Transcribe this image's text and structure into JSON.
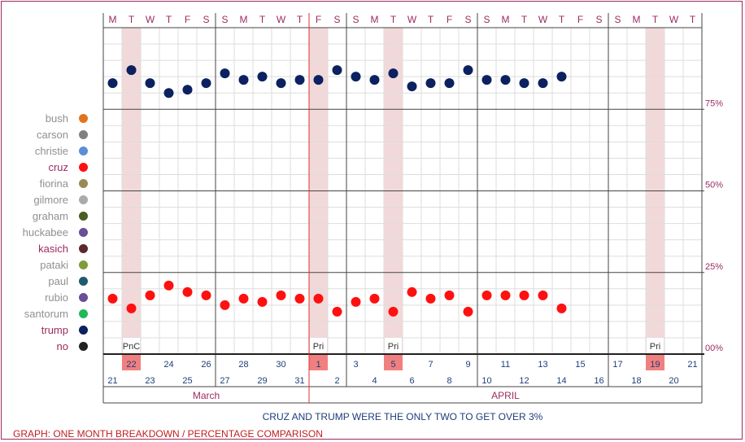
{
  "chart_data": {
    "type": "scatter",
    "day_letters": [
      "M",
      "T",
      "W",
      "T",
      "F",
      "S",
      "S",
      "M",
      "T",
      "W",
      "T",
      "F",
      "S",
      "S",
      "M",
      "T",
      "W",
      "T",
      "F",
      "S",
      "S",
      "M",
      "T",
      "W",
      "T",
      "F",
      "S",
      "S",
      "M",
      "T",
      "W",
      "T"
    ],
    "day_numbers": [
      "21",
      "22",
      "23",
      "24",
      "25",
      "26",
      "27",
      "28",
      "29",
      "30",
      "31",
      "1",
      "2",
      "3",
      "4",
      "5",
      "6",
      "7",
      "8",
      "9",
      "10",
      "11",
      "12",
      "13",
      "14",
      "15",
      "16",
      "17",
      "18",
      "19",
      "20",
      "21"
    ],
    "months": [
      "March",
      "APRIL"
    ],
    "event_markers": [
      {
        "day_index": 1,
        "label": "PnC"
      },
      {
        "day_index": 11,
        "label": "Pri"
      },
      {
        "day_index": 15,
        "label": "Pri"
      },
      {
        "day_index": 29,
        "label": "Pri"
      }
    ],
    "y_ticks": [
      "00%",
      "25%",
      "50%",
      "75%"
    ],
    "ylim": [
      0,
      100
    ],
    "series": [
      {
        "name": "trump",
        "color": "#0b2160",
        "values": [
          83,
          87,
          83,
          80,
          81,
          83,
          86,
          84,
          85,
          83,
          84,
          84,
          87,
          85,
          84,
          86,
          82,
          83,
          83,
          87,
          84,
          84,
          83,
          83,
          85,
          null,
          null,
          null,
          null,
          null,
          null,
          null
        ]
      },
      {
        "name": "cruz",
        "color": "#ff1010",
        "values": [
          17,
          14,
          18,
          21,
          19,
          18,
          15,
          17,
          16,
          18,
          17,
          17,
          13,
          16,
          17,
          13,
          19,
          17,
          18,
          13,
          18,
          18,
          18,
          18,
          14,
          null,
          null,
          null,
          null,
          null,
          null,
          null
        ]
      }
    ],
    "legend": [
      {
        "name": "bush",
        "color": "#e2751c",
        "highlight": false
      },
      {
        "name": "carson",
        "color": "#808080",
        "highlight": false
      },
      {
        "name": "christie",
        "color": "#5b8ed6",
        "highlight": false
      },
      {
        "name": "cruz",
        "color": "#ff1010",
        "highlight": true
      },
      {
        "name": "fiorina",
        "color": "#998a55",
        "highlight": false
      },
      {
        "name": "gilmore",
        "color": "#aaaaaa",
        "highlight": false
      },
      {
        "name": "graham",
        "color": "#4a5e22",
        "highlight": false
      },
      {
        "name": "huckabee",
        "color": "#6b4e94",
        "highlight": false
      },
      {
        "name": "kasich",
        "color": "#5c2a2a",
        "highlight": true
      },
      {
        "name": "pataki",
        "color": "#7f9c3a",
        "highlight": false
      },
      {
        "name": "paul",
        "color": "#1f5b6e",
        "highlight": false
      },
      {
        "name": "rubio",
        "color": "#6b4e94",
        "highlight": false
      },
      {
        "name": "santorum",
        "color": "#21b85a",
        "highlight": false
      },
      {
        "name": "trump",
        "color": "#0b2160",
        "highlight": true
      },
      {
        "name": "no",
        "color": "#222222",
        "highlight": true
      }
    ],
    "annotation": "CRUZ AND TRUMP WERE THE ONLY TWO TO GET OVER 3%",
    "caption": "GRAPH: ONE MONTH BREAKDOWN / PERCENTAGE COMPARISON"
  }
}
